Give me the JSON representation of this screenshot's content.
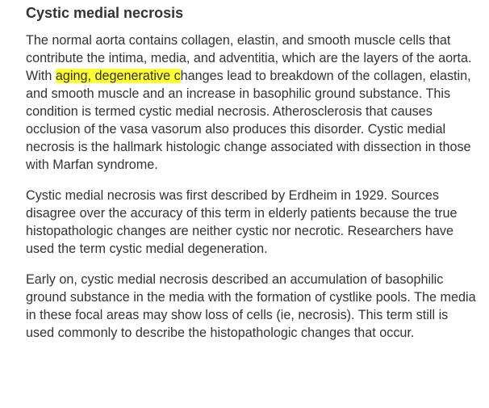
{
  "heading": "Cystic medial necrosis",
  "paragraphs": {
    "p1": {
      "before": "The normal aorta contains collagen, elastin, and smooth muscle cells that contribute the intima, media, and adventitia, which are the layers of the aorta. With ",
      "highlighted": "aging, degenerative c",
      "after": "hanges lead to breakdown of the collagen, elastin, and smooth muscle and an increase in basophilic ground substance. This condition is termed cystic medial necrosis. Atherosclerosis that causes occlusion of the vasa vasorum also produces this disorder. Cystic medial necrosis is the hallmark histologic change associated with dissection in those with Marfan syndrome."
    },
    "p2": "Cystic medial necrosis was first described by Erdheim in 1929. Sources disagree over the accuracy of this term in elderly patients because the true histopathologic changes are neither cystic nor necrotic. Researchers have used the term cystic medial degeneration.",
    "p3": "Early on, cystic medial necrosis described an accumulation of basophilic ground substance in the media with the formation of cystlike pools. The media in these focal areas may show loss of cells (ie, necrosis). This term still is used commonly to describe the histopathologic changes that occur."
  },
  "colors": {
    "text": "#333333",
    "highlight": "#ffff33",
    "background": "#ffffff"
  }
}
